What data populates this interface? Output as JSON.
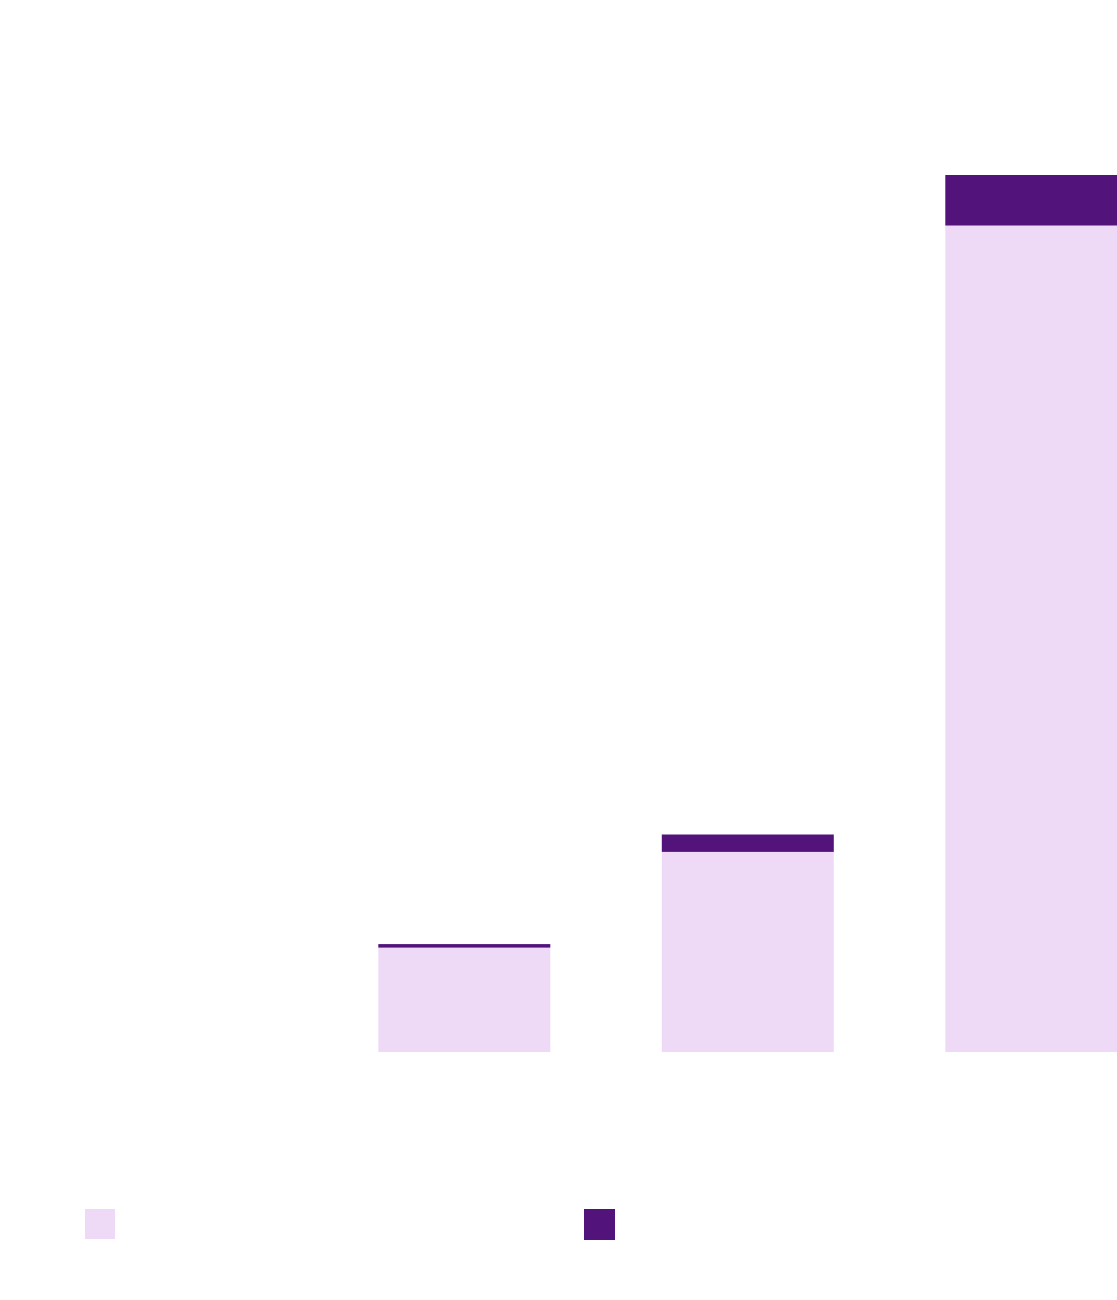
{
  "chart_data": {
    "type": "bar",
    "stacked": true,
    "title": "",
    "xlabel": "",
    "ylabel": "",
    "categories": [
      "",
      "",
      "",
      ""
    ],
    "series": [
      {
        "color": "#eedaf7",
        "values": [
          0,
          12.0,
          23.0,
          95.0
        ]
      },
      {
        "color": "#52137b",
        "values": [
          0,
          0.4,
          2.0,
          5.8
        ]
      }
    ],
    "ylim": [
      0,
      100
    ],
    "grid": false,
    "legend": {
      "position": "bottom-left",
      "entries": 2
    }
  }
}
